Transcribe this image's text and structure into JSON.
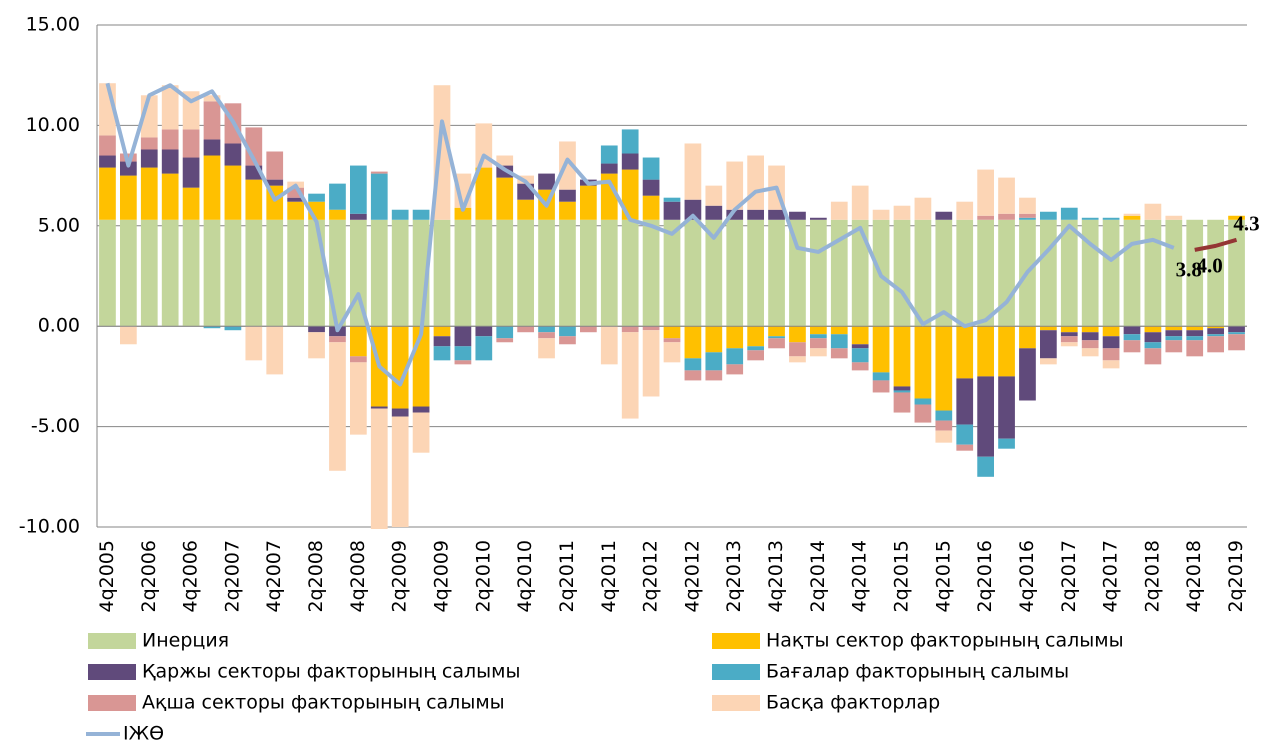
{
  "chart_data": {
    "type": "stacked_bar_line",
    "categories": [
      "4q2005",
      null,
      "2q2006",
      null,
      "4q2006",
      null,
      "2q2007",
      null,
      "4q2007",
      null,
      "2q2008",
      null,
      "4q2008",
      null,
      "2q2009",
      null,
      "4q2009",
      null,
      "2q2010",
      null,
      "4q2010",
      null,
      "2q2011",
      null,
      "4q2011",
      null,
      "2q2012",
      null,
      "4q2012",
      null,
      "2q2013",
      null,
      "4q2013",
      null,
      "2q2014",
      null,
      "4q2014",
      null,
      "2q2015",
      null,
      "4q2015",
      null,
      "2q2016",
      null,
      "4q2016",
      null,
      "2q2017",
      null,
      "4q2017",
      null,
      "2q2018",
      null,
      "4q2018",
      null,
      "2q2019"
    ],
    "ylim": [
      -10,
      15
    ],
    "yticks": [
      {
        "value": -10,
        "label": "-10.00"
      },
      {
        "value": -5,
        "label": "-5.00"
      },
      {
        "value": 0,
        "label": "0.00"
      },
      {
        "value": 5,
        "label": "5.00"
      },
      {
        "value": 10,
        "label": "10.00"
      },
      {
        "value": 15,
        "label": "15.00"
      }
    ],
    "grid": true,
    "series": [
      {
        "name": "Инерция",
        "color": "#C3D69B",
        "values": [
          5.3,
          5.3,
          5.3,
          5.3,
          5.3,
          5.3,
          5.3,
          5.3,
          5.3,
          5.3,
          5.3,
          5.3,
          5.3,
          5.3,
          5.3,
          5.3,
          5.3,
          5.3,
          5.3,
          5.3,
          5.3,
          5.3,
          5.3,
          5.3,
          5.3,
          5.3,
          5.3,
          5.3,
          5.3,
          5.3,
          5.3,
          5.3,
          5.3,
          5.3,
          5.3,
          5.3,
          5.3,
          5.3,
          5.3,
          5.3,
          5.3,
          5.3,
          5.3,
          5.3,
          5.3,
          5.3,
          5.3,
          5.3,
          5.3,
          5.3,
          5.3,
          5.3,
          5.3,
          5.3,
          5.3
        ]
      },
      {
        "name": "Нақты сектор факторының салымы",
        "color": "#FFC000",
        "values": [
          2.6,
          2.2,
          2.6,
          2.3,
          1.6,
          3.2,
          2.7,
          2.0,
          1.7,
          0.9,
          0.9,
          0.5,
          -1.5,
          -4.0,
          -4.1,
          -4.0,
          -0.5,
          0.6,
          2.6,
          2.1,
          1.0,
          1.5,
          0.9,
          1.7,
          2.3,
          2.5,
          1.2,
          -0.6,
          -1.6,
          -1.3,
          -1.1,
          -1.0,
          -0.5,
          -0.8,
          -0.4,
          -0.4,
          -0.9,
          -2.3,
          -3.0,
          -3.6,
          -4.2,
          -2.6,
          -2.5,
          -2.5,
          -1.1,
          -0.2,
          -0.3,
          -0.3,
          -0.5,
          0.2,
          -0.3,
          -0.2,
          -0.2,
          -0.1,
          0.2
        ]
      },
      {
        "name": "Қаржы секторы факторының салымы",
        "color": "#604A7B",
        "values": [
          0.6,
          0.7,
          0.9,
          1.2,
          1.5,
          0.8,
          1.1,
          0.7,
          0.3,
          0.2,
          -0.3,
          -0.5,
          0.3,
          -0.1,
          -0.4,
          -0.3,
          -0.5,
          -1.0,
          -0.5,
          0.6,
          0.8,
          0.8,
          0.6,
          0.3,
          0.5,
          0.8,
          0.8,
          0.9,
          1.0,
          0.7,
          0.5,
          0.5,
          0.5,
          0.4,
          0.1,
          0,
          -0.2,
          0,
          -0.2,
          0,
          0.4,
          -2.3,
          -4.0,
          -3.1,
          -2.6,
          -1.4,
          -0.2,
          -0.4,
          -0.6,
          -0.4,
          -0.5,
          -0.3,
          -0.3,
          -0.3,
          -0.3
        ]
      },
      {
        "name": "Бағалар факторының салымы",
        "color": "#4BACC6",
        "values": [
          0,
          0,
          0,
          0,
          0,
          -0.1,
          -0.2,
          0,
          0,
          0,
          0.4,
          1.3,
          2.4,
          2.3,
          0.5,
          0.5,
          -0.7,
          -0.7,
          -1.2,
          -0.6,
          0,
          -0.3,
          -0.5,
          0,
          0.9,
          1.2,
          1.1,
          0.2,
          -0.6,
          -0.9,
          -0.8,
          -0.2,
          -0.1,
          0,
          -0.2,
          -0.7,
          -0.7,
          -0.4,
          -0.1,
          -0.3,
          -0.5,
          -1.0,
          -1.0,
          -0.5,
          0.1,
          0.4,
          0.6,
          0.1,
          0.1,
          -0.3,
          -0.3,
          -0.2,
          -0.2,
          -0.1,
          -0.1
        ]
      },
      {
        "name": "Ақша секторы факторының салымы",
        "color": "#D99694",
        "values": [
          1.0,
          0.4,
          0.6,
          1.0,
          1.4,
          1.9,
          2.0,
          1.9,
          1.4,
          0.5,
          0,
          -0.3,
          -0.3,
          0.1,
          0,
          0,
          0,
          -0.2,
          0,
          -0.2,
          -0.3,
          -0.3,
          -0.4,
          -0.3,
          0,
          -0.3,
          -0.2,
          -0.2,
          -0.5,
          -0.5,
          -0.5,
          -0.5,
          -0.5,
          -0.7,
          -0.5,
          -0.5,
          -0.4,
          -0.6,
          -1.0,
          -0.9,
          -0.5,
          -0.3,
          0.2,
          0.3,
          0.2,
          0,
          -0.3,
          -0.4,
          -0.6,
          -0.6,
          -0.8,
          -0.6,
          -0.8,
          -0.8,
          -0.8
        ]
      },
      {
        "name": "Басқа факторлар",
        "color": "#FCD5B5",
        "values": [
          2.6,
          -0.9,
          2.1,
          2.2,
          1.9,
          0.3,
          0,
          -1.7,
          -2.4,
          0.3,
          -1.3,
          -6.4,
          -3.6,
          -6.0,
          -5.5,
          -2.0,
          6.7,
          1.7,
          2.2,
          0.5,
          0.4,
          -1.0,
          2.4,
          0,
          -1.9,
          -4.3,
          -3.3,
          -1.0,
          2.8,
          1.0,
          2.4,
          2.7,
          2.2,
          -0.3,
          -0.4,
          0.9,
          1.7,
          0.5,
          0.7,
          1.1,
          -0.6,
          0.9,
          2.3,
          1.8,
          0.8,
          -0.3,
          -0.2,
          -0.4,
          -0.4,
          0.1,
          0.8,
          0.2,
          0,
          0,
          0
        ]
      }
    ],
    "lines": [
      {
        "name": "ІЖӨ",
        "color": "#95B3D7",
        "values": [
          12.1,
          8.0,
          11.5,
          12.0,
          11.2,
          11.7,
          10.2,
          8.3,
          6.3,
          7.0,
          5.2,
          -0.2,
          1.6,
          -2.0,
          -2.9,
          -0.4,
          10.2,
          5.8,
          8.5,
          7.8,
          7.2,
          6.0,
          8.3,
          7.1,
          7.2,
          5.3,
          5.0,
          4.6,
          5.5,
          4.4,
          5.8,
          6.7,
          6.9,
          3.9,
          3.7,
          4.3,
          4.9,
          2.5,
          1.7,
          0.1,
          0.7,
          0.0,
          0.3,
          1.2,
          2.7,
          3.8,
          5.0,
          4.1,
          3.3,
          4.1,
          4.3,
          3.9,
          null,
          null,
          null
        ]
      },
      {
        "color": "#943634",
        "values": [
          null,
          null,
          null,
          null,
          null,
          null,
          null,
          null,
          null,
          null,
          null,
          null,
          null,
          null,
          null,
          null,
          null,
          null,
          null,
          null,
          null,
          null,
          null,
          null,
          null,
          null,
          null,
          null,
          null,
          null,
          null,
          null,
          null,
          null,
          null,
          null,
          null,
          null,
          null,
          null,
          null,
          null,
          null,
          null,
          null,
          null,
          null,
          null,
          null,
          null,
          null,
          null,
          3.8,
          4.0,
          4.3
        ],
        "value_labels": [
          null,
          null,
          null,
          null,
          null,
          null,
          null,
          null,
          null,
          null,
          null,
          null,
          null,
          null,
          null,
          null,
          null,
          null,
          null,
          null,
          null,
          null,
          null,
          null,
          null,
          null,
          null,
          null,
          null,
          null,
          null,
          null,
          null,
          null,
          null,
          null,
          null,
          null,
          null,
          null,
          null,
          null,
          null,
          null,
          null,
          null,
          null,
          null,
          null,
          null,
          null,
          null,
          "3.8",
          "4.0",
          "4.3"
        ]
      }
    ]
  }
}
